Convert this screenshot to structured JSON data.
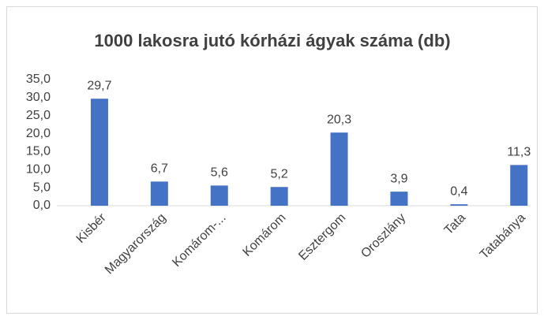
{
  "chart_data": {
    "type": "bar",
    "title": "1000 lakosra jutó kórházi ágyak száma (db)",
    "categories": [
      "Kisbér",
      "Magyarország",
      "Komárom-...",
      "Komárom",
      "Esztergom",
      "Oroszlány",
      "Tata",
      "Tatabánya"
    ],
    "values": [
      29.7,
      6.7,
      5.6,
      5.2,
      20.3,
      3.9,
      0.4,
      11.3
    ],
    "value_labels": [
      "29,7",
      "6,7",
      "5,6",
      "5,2",
      "20,3",
      "3,9",
      "0,4",
      "11,3"
    ],
    "color": "#4472c4",
    "ylim": [
      0,
      35
    ],
    "yticks": [
      {
        "value": 0,
        "label": "0,0"
      },
      {
        "value": 5,
        "label": "5,0"
      },
      {
        "value": 10,
        "label": "10,0"
      },
      {
        "value": 15,
        "label": "15,0"
      },
      {
        "value": 20,
        "label": "20,0"
      },
      {
        "value": 25,
        "label": "25,0"
      },
      {
        "value": 30,
        "label": "30,0"
      },
      {
        "value": 35,
        "label": "35,0"
      }
    ],
    "grid": false
  }
}
